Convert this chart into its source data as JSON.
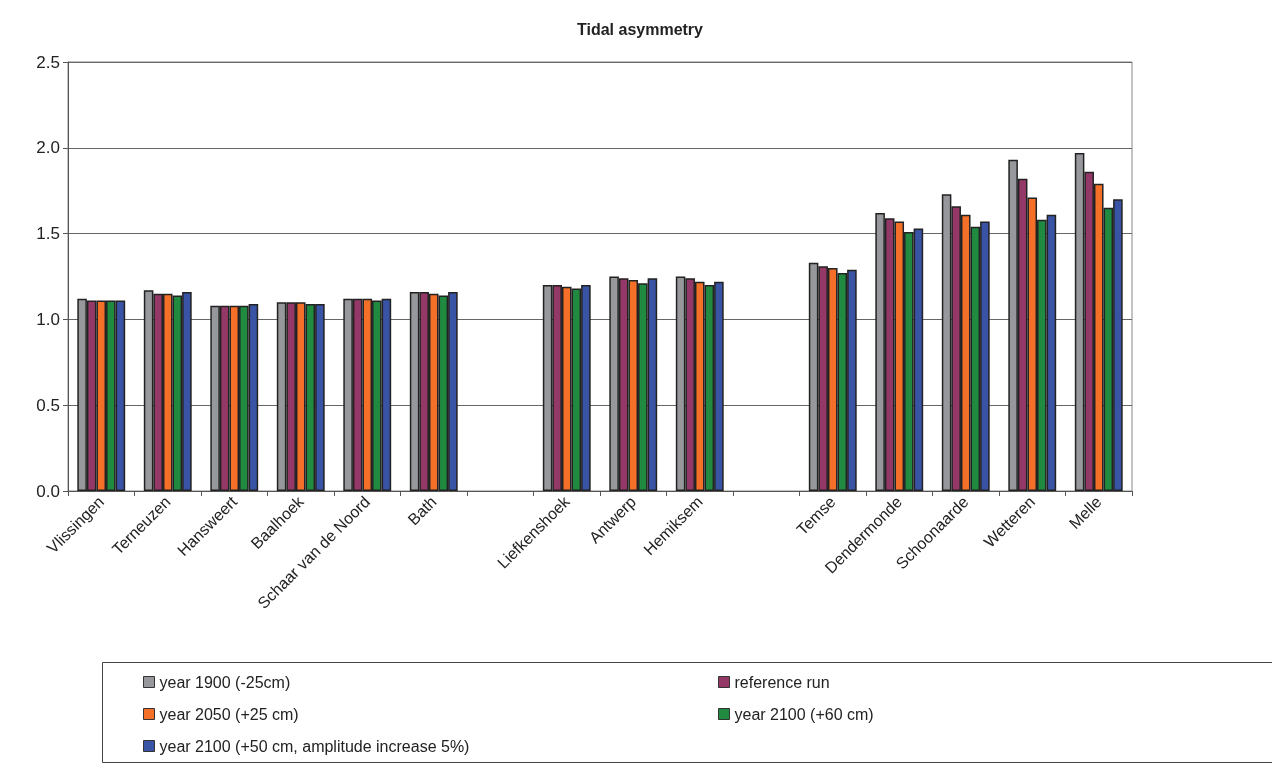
{
  "chart_data": {
    "type": "bar",
    "title": "Tidal asymmetry",
    "categories": [
      "Vlissingen",
      "Terneuzen",
      "Hansweert",
      "Baalhoek",
      "Schaar van de Noord",
      "Bath",
      null,
      "Liefkenshoek",
      "Antwerp",
      "Hemiksem",
      null,
      "Temse",
      "Dendermonde",
      "Schoonaarde",
      "Wetteren",
      "Melle"
    ],
    "series": [
      {
        "name": "year 1900 (-25cm)",
        "color": "#97989c",
        "values": [
          1.12,
          1.17,
          1.08,
          1.1,
          1.12,
          1.16,
          null,
          1.2,
          1.25,
          1.25,
          null,
          1.33,
          1.62,
          1.73,
          1.93,
          1.97
        ]
      },
      {
        "name": "reference run",
        "color": "#943868",
        "values": [
          1.11,
          1.15,
          1.08,
          1.1,
          1.12,
          1.16,
          null,
          1.2,
          1.24,
          1.24,
          null,
          1.31,
          1.59,
          1.66,
          1.82,
          1.86
        ]
      },
      {
        "name": "year 2050 (+25 cm)",
        "color": "#f47029",
        "values": [
          1.11,
          1.15,
          1.08,
          1.1,
          1.12,
          1.15,
          null,
          1.19,
          1.23,
          1.22,
          null,
          1.3,
          1.57,
          1.61,
          1.71,
          1.79
        ]
      },
      {
        "name": "year 2100 (+60 cm)",
        "color": "#1f8a40",
        "values": [
          1.11,
          1.14,
          1.08,
          1.09,
          1.11,
          1.14,
          null,
          1.18,
          1.21,
          1.2,
          null,
          1.27,
          1.51,
          1.54,
          1.58,
          1.65
        ]
      },
      {
        "name": "year 2100 (+50 cm, amplitude increase 5%)",
        "color": "#3a54a5",
        "values": [
          1.11,
          1.16,
          1.09,
          1.09,
          1.12,
          1.16,
          null,
          1.2,
          1.24,
          1.22,
          null,
          1.29,
          1.53,
          1.57,
          1.61,
          1.7
        ]
      }
    ],
    "ylim": [
      0,
      2.5
    ],
    "yticks": [
      {
        "value": 0,
        "label": "0.0"
      },
      0.5,
      {
        "value": 1,
        "label": "1.0"
      },
      1.5,
      {
        "value": 2,
        "label": "2.0"
      },
      2.5
    ],
    "grid": "y",
    "legend": "bottom"
  }
}
